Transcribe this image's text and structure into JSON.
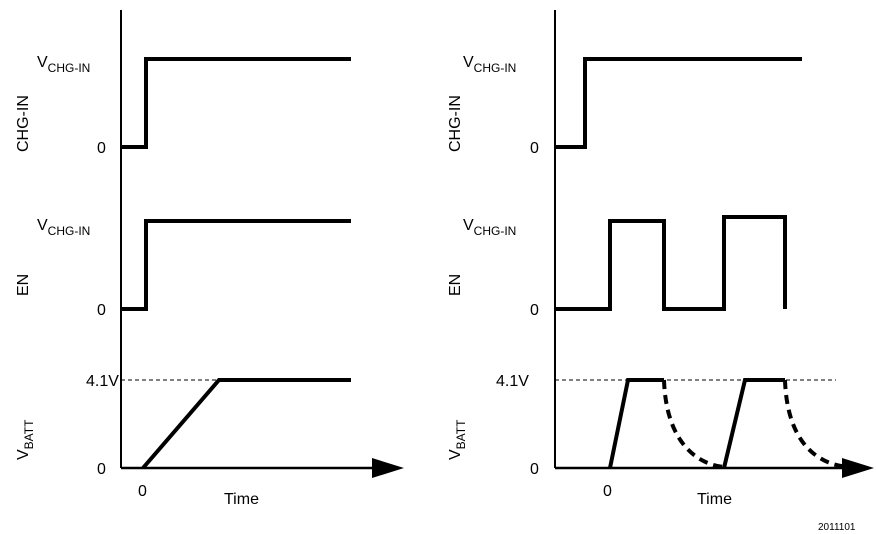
{
  "left_panel": {
    "chg_in": {
      "axis_label": "CHG-IN",
      "high_prefix": "V",
      "high_subscript": "CHG-IN",
      "low_label": "0"
    },
    "en": {
      "axis_label": "EN",
      "high_prefix": "V",
      "high_subscript": "CHG-IN",
      "low_label": "0"
    },
    "vbatt": {
      "axis_prefix": "V",
      "axis_subscript": "BATT",
      "level_label": "4.1V",
      "low_label": "0"
    },
    "x_axis": {
      "origin_label": "0",
      "label": "Time"
    }
  },
  "right_panel": {
    "chg_in": {
      "axis_label": "CHG-IN",
      "high_prefix": "V",
      "high_subscript": "CHG-IN",
      "low_label": "0"
    },
    "en": {
      "axis_label": "EN",
      "high_prefix": "V",
      "high_subscript": "CHG-IN",
      "low_label": "0"
    },
    "vbatt": {
      "axis_prefix": "V",
      "axis_subscript": "BATT",
      "level_label": "4.1V",
      "low_label": "0"
    },
    "x_axis": {
      "origin_label": "0",
      "label": "Time"
    }
  },
  "figure_id": "2011101"
}
